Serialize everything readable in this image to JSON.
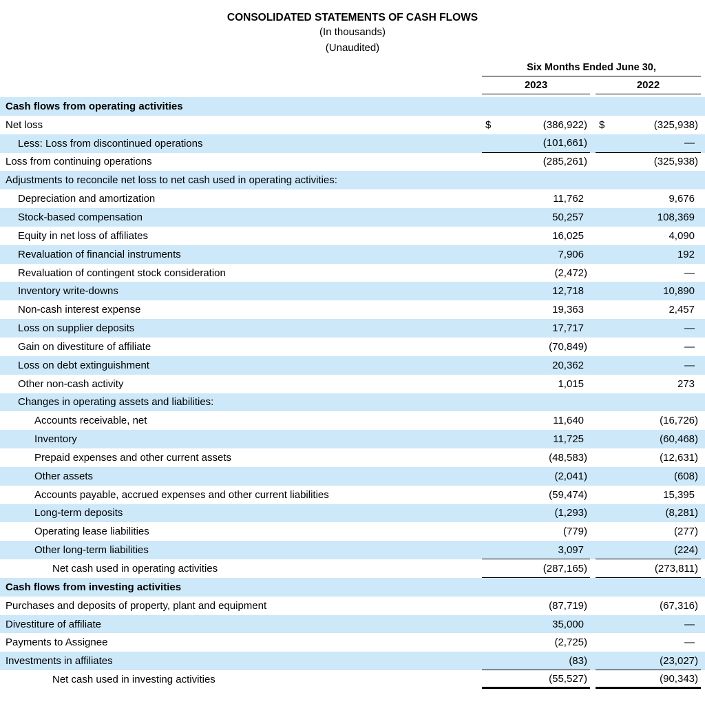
{
  "title_block": {
    "title": "CONSOLIDATED STATEMENTS OF CASH FLOWS",
    "subtitle_units": "(In thousands)",
    "subtitle_audit": "(Unaudited)"
  },
  "columns": {
    "period_header": "Six Months Ended June 30,",
    "year_1": "2023",
    "year_2": "2022"
  },
  "colors": {
    "highlight_row": "#CDE8F9",
    "text": "#000000",
    "rule": "#000000"
  },
  "table": {
    "rows": [
      {
        "label": "Cash flows from operating activities"
      },
      {
        "label": "Net loss",
        "cur1": "$",
        "y2023": "(386,922)",
        "cur2": "$",
        "y2022": "(325,938)"
      },
      {
        "label": "Less: Loss from discontinued operations",
        "y2023": "(101,661)",
        "y2022": "—"
      },
      {
        "label": "Loss from continuing operations",
        "y2023": "(285,261)",
        "y2022": "(325,938)"
      },
      {
        "label": "Adjustments to reconcile net loss to net cash used in operating activities:"
      },
      {
        "label": "Depreciation and amortization",
        "y2023": "11,762",
        "y2022": "9,676"
      },
      {
        "label": "Stock-based compensation",
        "y2023": "50,257",
        "y2022": "108,369"
      },
      {
        "label": "Equity in net loss of affiliates",
        "y2023": "16,025",
        "y2022": "4,090"
      },
      {
        "label": "Revaluation of financial instruments",
        "y2023": "7,906",
        "y2022": "192"
      },
      {
        "label": "Revaluation of contingent stock consideration",
        "y2023": "(2,472)",
        "y2022": "—"
      },
      {
        "label": "Inventory write-downs",
        "y2023": "12,718",
        "y2022": "10,890"
      },
      {
        "label": "Non-cash interest expense",
        "y2023": "19,363",
        "y2022": "2,457"
      },
      {
        "label": "Loss on supplier deposits",
        "y2023": "17,717",
        "y2022": "—"
      },
      {
        "label": "Gain on divestiture of affiliate",
        "y2023": "(70,849)",
        "y2022": "—"
      },
      {
        "label": "Loss on debt extinguishment",
        "y2023": "20,362",
        "y2022": "—"
      },
      {
        "label": "Other non-cash activity",
        "y2023": "1,015",
        "y2022": "273"
      },
      {
        "label": "Changes in operating assets and liabilities:"
      },
      {
        "label": "Accounts receivable, net",
        "y2023": "11,640",
        "y2022": "(16,726)"
      },
      {
        "label": "Inventory",
        "y2023": "11,725",
        "y2022": "(60,468)"
      },
      {
        "label": "Prepaid expenses and other current assets",
        "y2023": "(48,583)",
        "y2022": "(12,631)"
      },
      {
        "label": "Other assets",
        "y2023": "(2,041)",
        "y2022": "(608)"
      },
      {
        "label": "Accounts payable, accrued expenses and other current liabilities",
        "y2023": "(59,474)",
        "y2022": "15,395"
      },
      {
        "label": "Long-term deposits",
        "y2023": "(1,293)",
        "y2022": "(8,281)"
      },
      {
        "label": "Operating lease liabilities",
        "y2023": "(779)",
        "y2022": "(277)"
      },
      {
        "label": "Other long-term liabilities",
        "y2023": "3,097",
        "y2022": "(224)"
      },
      {
        "label": "Net cash used in operating activities",
        "y2023": "(287,165)",
        "y2022": "(273,811)"
      },
      {
        "label": "Cash flows from investing activities"
      },
      {
        "label": "Purchases and deposits of property, plant and equipment",
        "y2023": "(87,719)",
        "y2022": "(67,316)"
      },
      {
        "label": "Divestiture of affiliate",
        "y2023": "35,000",
        "y2022": "—"
      },
      {
        "label": "Payments to Assignee",
        "y2023": "(2,725)",
        "y2022": "—"
      },
      {
        "label": "Investments in affiliates",
        "y2023": "(83)",
        "y2022": "(23,027)"
      },
      {
        "label": "Net cash used in investing activities",
        "y2023": "(55,527)",
        "y2022": "(90,343)"
      }
    ]
  }
}
